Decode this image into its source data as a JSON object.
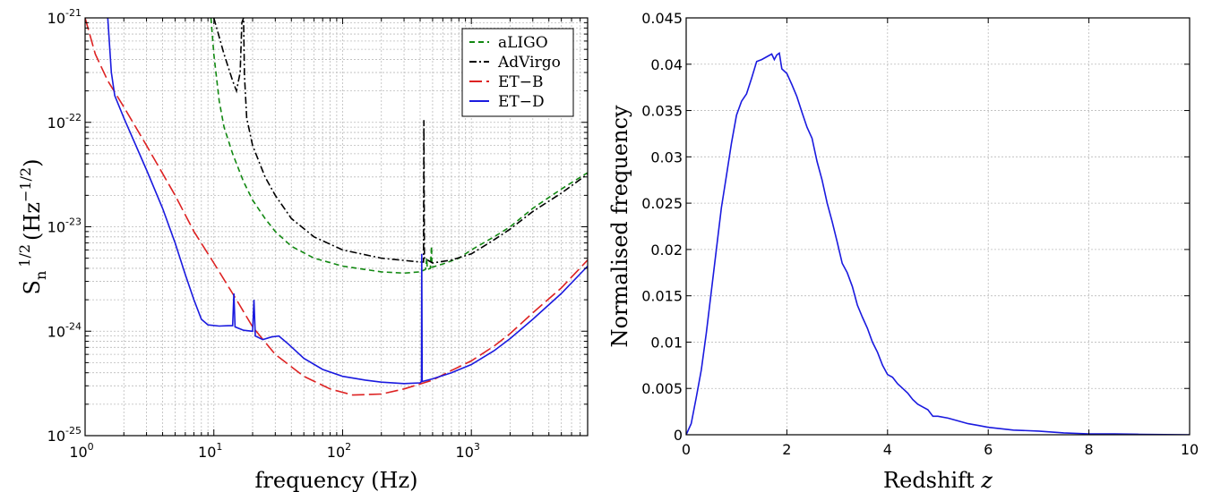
{
  "chart_data": [
    {
      "type": "line",
      "xscale": "log",
      "yscale": "log",
      "xlim": [
        1,
        8000
      ],
      "ylim": [
        1e-25,
        1e-21
      ],
      "grid": true,
      "xlabel": "frequency (Hz)",
      "ylabel": {
        "base": "S",
        "sub": "n",
        "exp": "1/2",
        "unit_open": "(Hz",
        "unit_exp": "−1/2",
        "unit_close": ")"
      },
      "xticks": [
        {
          "value": 1,
          "mant": "10",
          "exp": "0"
        },
        {
          "value": 10,
          "mant": "10",
          "exp": "1"
        },
        {
          "value": 100,
          "mant": "10",
          "exp": "2"
        },
        {
          "value": 1000,
          "mant": "10",
          "exp": "3"
        }
      ],
      "yticks": [
        {
          "value": 1e-25,
          "mant": "10",
          "exp": "-25"
        },
        {
          "value": 1e-24,
          "mant": "10",
          "exp": "-24"
        },
        {
          "value": 1e-23,
          "mant": "10",
          "exp": "-23"
        },
        {
          "value": 1e-22,
          "mant": "10",
          "exp": "-22"
        },
        {
          "value": 1e-21,
          "mant": "10",
          "exp": "-21"
        }
      ],
      "legend_position": "top-right",
      "series": [
        {
          "name": "aLIGO",
          "color": "#118811",
          "dash": "6,4",
          "points": [
            [
              9.5,
              1e-21
            ],
            [
              10,
              4.5e-22
            ],
            [
              11,
              1.6e-22
            ],
            [
              12,
              9e-23
            ],
            [
              14,
              5e-23
            ],
            [
              17,
              2.7e-23
            ],
            [
              20,
              1.8e-23
            ],
            [
              25,
              1.2e-23
            ],
            [
              30,
              9e-24
            ],
            [
              40,
              6.5e-24
            ],
            [
              60,
              5e-24
            ],
            [
              100,
              4.2e-24
            ],
            [
              200,
              3.7e-24
            ],
            [
              300,
              3.6e-24
            ],
            [
              400,
              3.7e-24
            ],
            [
              440,
              3.9e-24
            ],
            [
              450,
              5e-24
            ],
            [
              455,
              3.9e-24
            ],
            [
              480,
              4e-24
            ],
            [
              490,
              6.5e-24
            ],
            [
              495,
              4.1e-24
            ],
            [
              600,
              4.4e-24
            ],
            [
              800,
              5e-24
            ],
            [
              1000,
              6e-24
            ],
            [
              1500,
              8e-24
            ],
            [
              2000,
              1e-23
            ],
            [
              3000,
              1.5e-23
            ],
            [
              5000,
              2.3e-23
            ],
            [
              8000,
              3.3e-23
            ]
          ]
        },
        {
          "name": "AdVirgo",
          "color": "#000000",
          "dash": "8,3,2,3",
          "points": [
            [
              10,
              1e-21
            ],
            [
              12,
              4.5e-22
            ],
            [
              14,
              2.5e-22
            ],
            [
              15,
              2e-22
            ],
            [
              16,
              3e-22
            ],
            [
              16.5,
              9e-22
            ],
            [
              17,
              1e-21
            ],
            [
              17.3,
              2.8e-22
            ],
            [
              18,
              1.1e-22
            ],
            [
              20,
              6e-23
            ],
            [
              25,
              3e-23
            ],
            [
              30,
              2e-23
            ],
            [
              40,
              1.2e-23
            ],
            [
              60,
              8e-24
            ],
            [
              100,
              6e-24
            ],
            [
              200,
              5e-24
            ],
            [
              400,
              4.6e-24
            ],
            [
              425,
              4.6e-24
            ],
            [
              428,
              1.05e-22
            ],
            [
              432,
              5e-24
            ],
            [
              500,
              4.5e-24
            ],
            [
              700,
              4.8e-24
            ],
            [
              1000,
              5.5e-24
            ],
            [
              1500,
              7.5e-24
            ],
            [
              2000,
              9.5e-24
            ],
            [
              3000,
              1.4e-23
            ],
            [
              5000,
              2.1e-23
            ],
            [
              8000,
              3.2e-23
            ]
          ]
        },
        {
          "name": "ET−B",
          "color": "#dd2222",
          "dash": "14,5",
          "points": [
            [
              1,
              1e-21
            ],
            [
              1.2,
              4.5e-22
            ],
            [
              1.5,
              2.5e-22
            ],
            [
              2,
              1.4e-22
            ],
            [
              3,
              6e-23
            ],
            [
              5,
              2e-23
            ],
            [
              7,
              9e-24
            ],
            [
              10,
              4.5e-24
            ],
            [
              15,
              2e-24
            ],
            [
              20,
              1.1e-24
            ],
            [
              30,
              6e-25
            ],
            [
              50,
              3.7e-25
            ],
            [
              80,
              2.8e-25
            ],
            [
              120,
              2.45e-25
            ],
            [
              200,
              2.5e-25
            ],
            [
              300,
              2.8e-25
            ],
            [
              500,
              3.4e-25
            ],
            [
              700,
              4.2e-25
            ],
            [
              1000,
              5.2e-25
            ],
            [
              1500,
              7.2e-25
            ],
            [
              2000,
              9.5e-25
            ],
            [
              3000,
              1.5e-24
            ],
            [
              5000,
              2.6e-24
            ],
            [
              8000,
              4.8e-24
            ]
          ]
        },
        {
          "name": "ET−D",
          "color": "#1a1adf",
          "dash": "",
          "points": [
            [
              1.5,
              1e-21
            ],
            [
              1.6,
              3e-22
            ],
            [
              1.7,
              1.8e-22
            ],
            [
              2,
              1.1e-22
            ],
            [
              3,
              3.5e-23
            ],
            [
              4,
              1.5e-23
            ],
            [
              5,
              7e-24
            ],
            [
              6,
              3.5e-24
            ],
            [
              7,
              2e-24
            ],
            [
              8,
              1.3e-24
            ],
            [
              9,
              1.15e-24
            ],
            [
              11,
              1.12e-24
            ],
            [
              13,
              1.13e-24
            ],
            [
              14,
              1.13e-24
            ],
            [
              14.3,
              2.3e-24
            ],
            [
              14.6,
              1.1e-24
            ],
            [
              17,
              1.02e-24
            ],
            [
              20,
              1e-24
            ],
            [
              20.5,
              2e-24
            ],
            [
              21,
              9e-25
            ],
            [
              24,
              8.3e-25
            ],
            [
              28,
              8.8e-25
            ],
            [
              32,
              9e-25
            ],
            [
              38,
              7.5e-25
            ],
            [
              50,
              5.5e-25
            ],
            [
              70,
              4.3e-25
            ],
            [
              100,
              3.7e-25
            ],
            [
              150,
              3.4e-25
            ],
            [
              200,
              3.25e-25
            ],
            [
              300,
              3.15e-25
            ],
            [
              400,
              3.2e-25
            ],
            [
              410,
              3.3e-25
            ],
            [
              412,
              5.5e-24
            ],
            [
              415,
              3.3e-25
            ],
            [
              500,
              3.5e-25
            ],
            [
              700,
              4e-25
            ],
            [
              1000,
              4.8e-25
            ],
            [
              1500,
              6.5e-25
            ],
            [
              2000,
              8.5e-25
            ],
            [
              3000,
              1.3e-24
            ],
            [
              5000,
              2.3e-24
            ],
            [
              8000,
              4.2e-24
            ]
          ]
        }
      ]
    },
    {
      "type": "line",
      "xlim": [
        0,
        10
      ],
      "ylim": [
        0,
        0.045
      ],
      "grid": true,
      "xlabel": "Redshift",
      "xlabel_var": "z",
      "ylabel": "Normalised frequency",
      "xticks": [
        "0",
        "2",
        "4",
        "6",
        "8",
        "10"
      ],
      "yticks": [
        "0",
        "0.005",
        "0.01",
        "0.015",
        "0.02",
        "0.025",
        "0.03",
        "0.035",
        "0.04",
        "0.045"
      ],
      "series": [
        {
          "color": "#1a1adf",
          "points": [
            [
              0,
              0
            ],
            [
              0.1,
              0.0012
            ],
            [
              0.2,
              0.004
            ],
            [
              0.3,
              0.007
            ],
            [
              0.4,
              0.011
            ],
            [
              0.5,
              0.0155
            ],
            [
              0.6,
              0.02
            ],
            [
              0.7,
              0.0245
            ],
            [
              0.8,
              0.028
            ],
            [
              0.9,
              0.0315
            ],
            [
              1.0,
              0.0345
            ],
            [
              1.1,
              0.036
            ],
            [
              1.2,
              0.0368
            ],
            [
              1.3,
              0.0385
            ],
            [
              1.4,
              0.0403
            ],
            [
              1.5,
              0.0405
            ],
            [
              1.6,
              0.0408
            ],
            [
              1.7,
              0.0411
            ],
            [
              1.75,
              0.0405
            ],
            [
              1.8,
              0.041
            ],
            [
              1.85,
              0.0412
            ],
            [
              1.9,
              0.0395
            ],
            [
              2.0,
              0.039
            ],
            [
              2.1,
              0.0378
            ],
            [
              2.2,
              0.0365
            ],
            [
              2.3,
              0.0348
            ],
            [
              2.4,
              0.0332
            ],
            [
              2.5,
              0.032
            ],
            [
              2.6,
              0.0295
            ],
            [
              2.7,
              0.0275
            ],
            [
              2.8,
              0.025
            ],
            [
              2.9,
              0.023
            ],
            [
              3.0,
              0.0208
            ],
            [
              3.1,
              0.0185
            ],
            [
              3.2,
              0.0175
            ],
            [
              3.3,
              0.016
            ],
            [
              3.4,
              0.014
            ],
            [
              3.5,
              0.0127
            ],
            [
              3.6,
              0.0115
            ],
            [
              3.7,
              0.01
            ],
            [
              3.8,
              0.0089
            ],
            [
              3.9,
              0.0075
            ],
            [
              4.0,
              0.0065
            ],
            [
              4.1,
              0.0062
            ],
            [
              4.2,
              0.0055
            ],
            [
              4.3,
              0.005
            ],
            [
              4.4,
              0.0045
            ],
            [
              4.5,
              0.0038
            ],
            [
              4.6,
              0.0033
            ],
            [
              4.7,
              0.003
            ],
            [
              4.8,
              0.0027
            ],
            [
              4.9,
              0.002
            ],
            [
              5.0,
              0.002
            ],
            [
              5.2,
              0.0018
            ],
            [
              5.4,
              0.0015
            ],
            [
              5.6,
              0.0012
            ],
            [
              5.8,
              0.001
            ],
            [
              6.0,
              0.0008
            ],
            [
              6.5,
              0.0005
            ],
            [
              7.0,
              0.0004
            ],
            [
              7.5,
              0.0002
            ],
            [
              8.0,
              0.0001
            ],
            [
              8.5,
              0.0001
            ],
            [
              9.0,
              5e-05
            ],
            [
              10.0,
              0
            ]
          ]
        }
      ]
    }
  ]
}
